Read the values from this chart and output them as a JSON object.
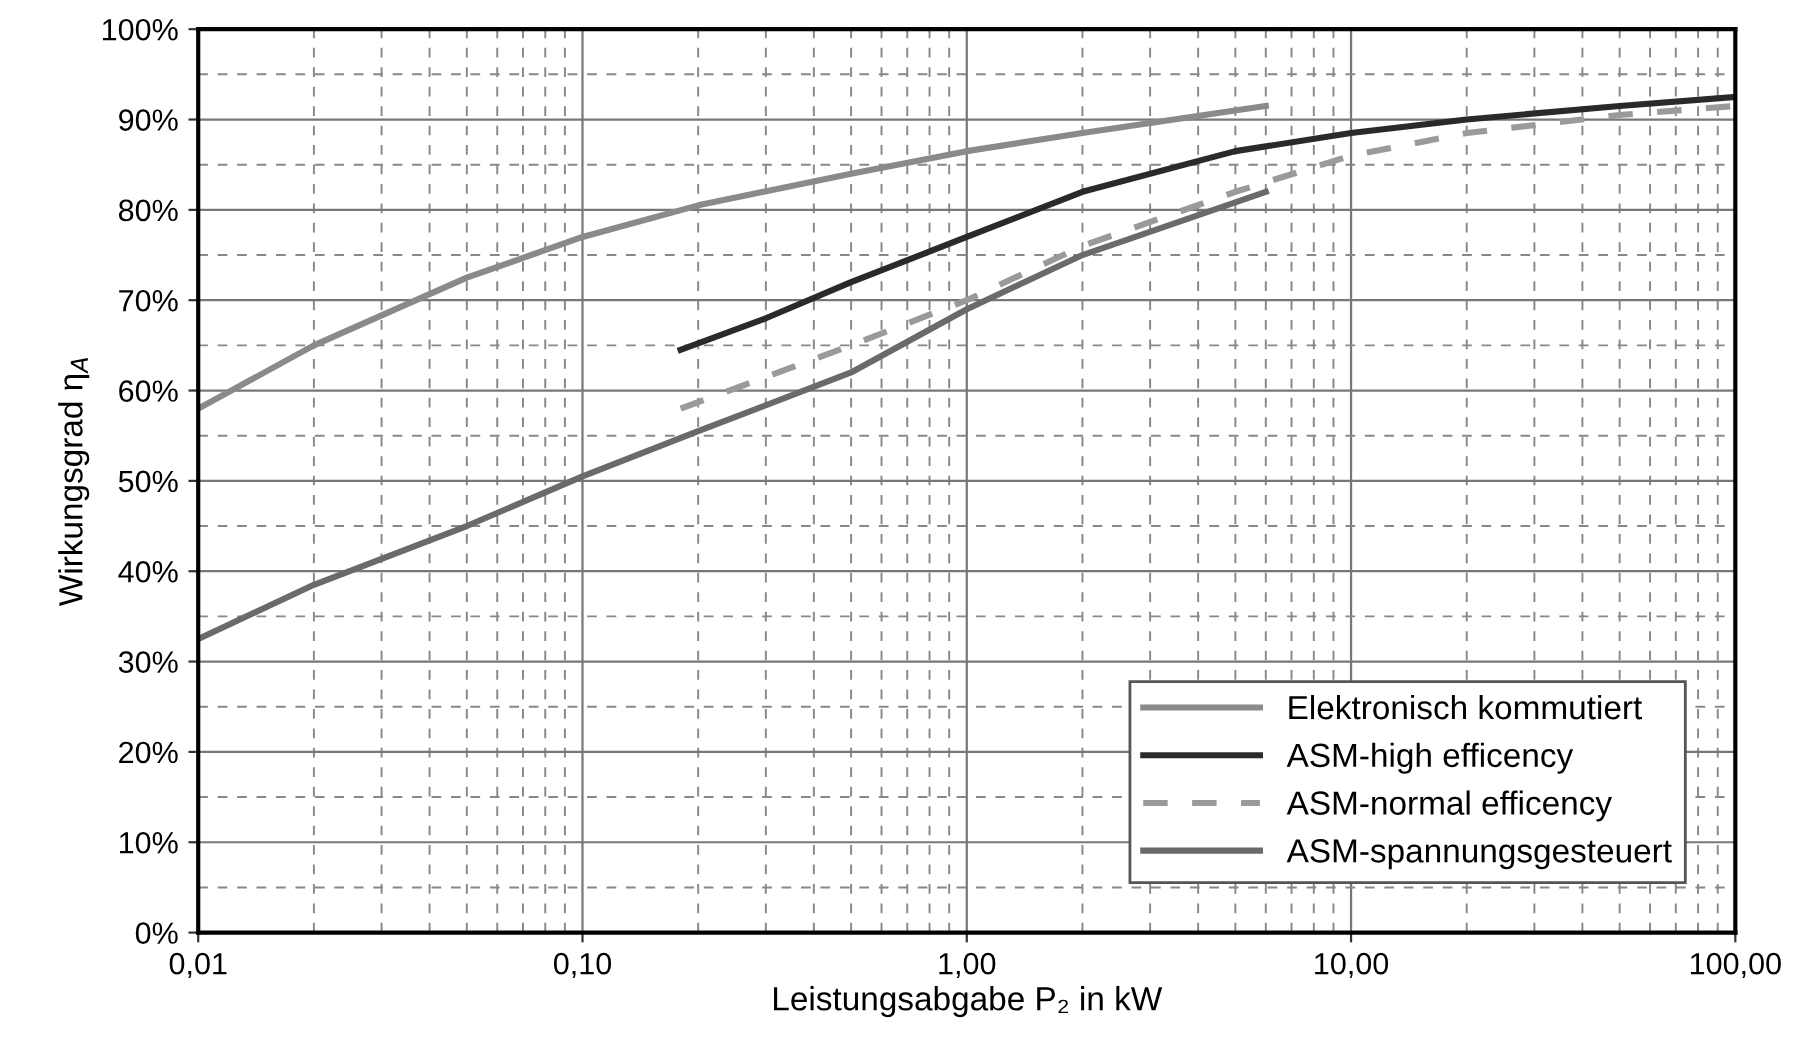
{
  "chart_data": {
    "type": "line",
    "xlabel": "Leistungsabgabe P₂ in kW",
    "ylabel": "Wirkungsgrad η$_{A}$",
    "log": "x",
    "xlim": [
      0.01,
      100
    ],
    "ylim": [
      0,
      100
    ],
    "xticks": [
      {
        "value": 0.01,
        "label": "0,01"
      },
      {
        "value": 0.1,
        "label": "0,10"
      },
      {
        "value": 1,
        "label": "1,00"
      },
      {
        "value": 10,
        "label": "10,00"
      },
      {
        "value": 100,
        "label": "100,00"
      }
    ],
    "yticks": [
      {
        "value": 0,
        "label": "0%"
      },
      {
        "value": 10,
        "label": "10%"
      },
      {
        "value": 20,
        "label": "20%"
      },
      {
        "value": 30,
        "label": "30%"
      },
      {
        "value": 40,
        "label": "40%"
      },
      {
        "value": 50,
        "label": "50%"
      },
      {
        "value": 60,
        "label": "60%"
      },
      {
        "value": 70,
        "label": "70%"
      },
      {
        "value": 80,
        "label": "80%"
      },
      {
        "value": 90,
        "label": "90%"
      },
      {
        "value": 100,
        "label": "100%"
      }
    ],
    "grid": true,
    "legend": "bottom right",
    "series": [
      {
        "name": "Elektronisch kommutiert",
        "color": "#8a8a8a",
        "line_style": "solid",
        "x": [
          0.01,
          0.02,
          0.05,
          0.1,
          0.2,
          0.5,
          1,
          2,
          6
        ],
        "values": [
          58,
          65,
          72.5,
          77,
          80.5,
          84,
          86.5,
          88.5,
          91.5
        ]
      },
      {
        "name": "ASM-high efficency",
        "color": "#2a2a2a",
        "line_style": "solid",
        "x": [
          0.18,
          0.3,
          0.5,
          1,
          2,
          5,
          10,
          20,
          50,
          100
        ],
        "values": [
          64.5,
          68,
          72,
          77,
          82,
          86.5,
          88.5,
          90,
          91.5,
          92.5
        ]
      },
      {
        "name": "ASM-normal efficency",
        "color": "#9a9a9a",
        "line_style": "dashed",
        "x": [
          0.18,
          0.3,
          0.5,
          1,
          2,
          5,
          10,
          20,
          50,
          100
        ],
        "values": [
          58,
          61.5,
          65,
          70,
          76,
          82,
          86,
          88.5,
          90.5,
          91.5
        ]
      },
      {
        "name": "ASM-spannungsgesteuert",
        "color": "#6a6a6a",
        "line_style": "solid",
        "x": [
          0.01,
          0.02,
          0.05,
          0.1,
          0.2,
          0.5,
          1,
          2,
          6
        ],
        "values": [
          32.5,
          38.5,
          45,
          50.5,
          55.5,
          62,
          69,
          75,
          82
        ]
      }
    ]
  }
}
